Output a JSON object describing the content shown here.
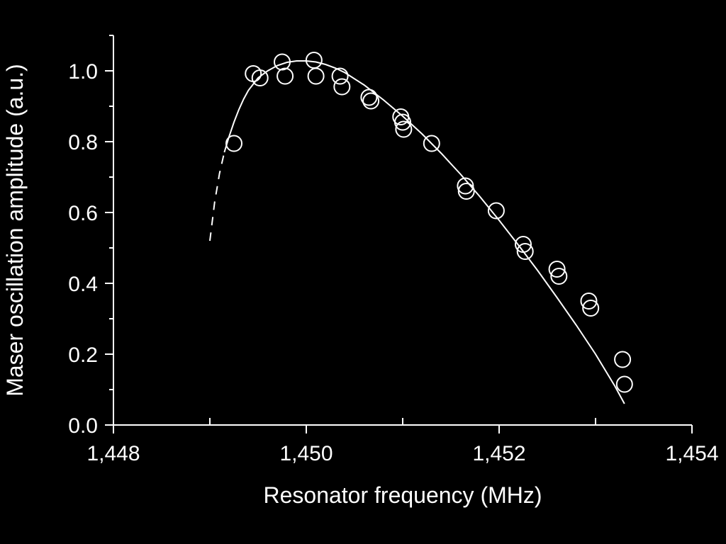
{
  "colors": {
    "background": "#000000",
    "foreground": "#ffffff"
  },
  "chart_data": {
    "type": "scatter",
    "title": "",
    "xlabel": "Resonator frequency (MHz)",
    "ylabel": "Maser oscillation amplitude (a.u.)",
    "xlim": [
      1448,
      1454
    ],
    "ylim": [
      0,
      1.1
    ],
    "x_ticks": [
      1448,
      1450,
      1452,
      1454
    ],
    "x_tick_labels": [
      "1,448",
      "1,450",
      "1,452",
      "1,454"
    ],
    "y_ticks": [
      0.0,
      0.2,
      0.4,
      0.6,
      0.8,
      1.0
    ],
    "y_tick_labels": [
      "0.0",
      "0.2",
      "0.4",
      "0.6",
      "0.8",
      "1.0"
    ],
    "grid": false,
    "legend": "none",
    "series": [
      {
        "marker": "open-circle",
        "x": [
          1449.25,
          1449.45,
          1449.52,
          1449.75,
          1449.78,
          1450.08,
          1450.1,
          1450.35,
          1450.37,
          1450.65,
          1450.67,
          1450.98,
          1451.0,
          1451.01,
          1451.3,
          1451.65,
          1451.66,
          1451.97,
          1452.25,
          1452.27,
          1452.6,
          1452.62,
          1452.93,
          1452.95,
          1453.28,
          1453.3
        ],
        "y": [
          0.795,
          0.992,
          0.98,
          1.025,
          0.985,
          1.03,
          0.985,
          0.985,
          0.955,
          0.925,
          0.915,
          0.87,
          0.855,
          0.835,
          0.795,
          0.675,
          0.66,
          0.605,
          0.51,
          0.49,
          0.44,
          0.42,
          0.35,
          0.33,
          0.185,
          0.115
        ]
      }
    ],
    "fit_curve": {
      "style": "solid-with-dashed-extrapolation",
      "x": [
        1449.0,
        1449.05,
        1449.1,
        1449.15,
        1449.2,
        1449.25,
        1449.3,
        1449.35,
        1449.4,
        1449.5,
        1449.6,
        1449.7,
        1449.8,
        1449.9,
        1450.0,
        1450.1,
        1450.2,
        1450.3,
        1450.4,
        1450.6,
        1450.8,
        1451.0,
        1451.2,
        1451.4,
        1451.6,
        1451.8,
        1452.0,
        1452.2,
        1452.4,
        1452.6,
        1452.8,
        1453.0,
        1453.1,
        1453.2,
        1453.3,
        1453.4
      ],
      "y": [
        0.52,
        0.63,
        0.71,
        0.77,
        0.815,
        0.855,
        0.89,
        0.92,
        0.945,
        0.98,
        1.0,
        1.015,
        1.024,
        1.028,
        1.028,
        1.025,
        1.018,
        1.008,
        0.995,
        0.96,
        0.918,
        0.872,
        0.822,
        0.767,
        0.708,
        0.645,
        0.578,
        0.508,
        0.436,
        0.36,
        0.282,
        0.2,
        0.155,
        0.11,
        0.06,
        0.02
      ],
      "solid_range": [
        1449.15,
        1453.32
      ]
    }
  }
}
